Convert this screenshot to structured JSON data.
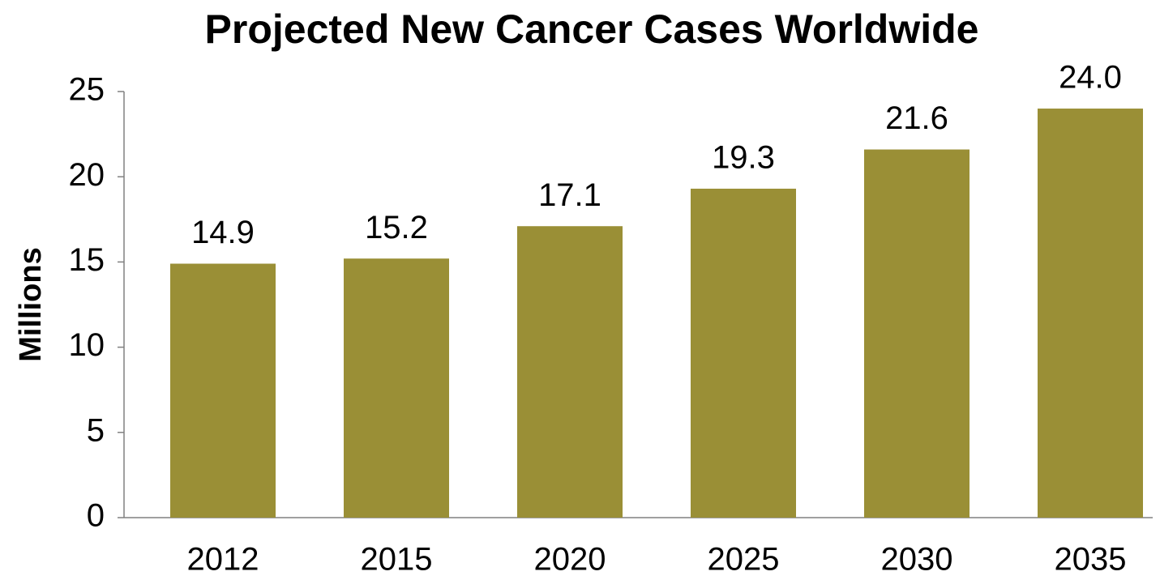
{
  "chart_data": {
    "type": "bar",
    "title": "Projected New Cancer Cases Worldwide",
    "y_label": "Millions",
    "categories": [
      "2012",
      "2015",
      "2020",
      "2025",
      "2030",
      "2035"
    ],
    "values": [
      14.9,
      15.2,
      17.1,
      19.3,
      21.6,
      24
    ],
    "value_labels": [
      "14.9",
      "15.2",
      "17.1",
      "19.3",
      "21.6",
      "24.0"
    ],
    "color": "#9a8f36",
    "ylim": [
      0,
      25
    ],
    "yticks": [
      0,
      5,
      10,
      15,
      20,
      25
    ],
    "grid": false
  }
}
